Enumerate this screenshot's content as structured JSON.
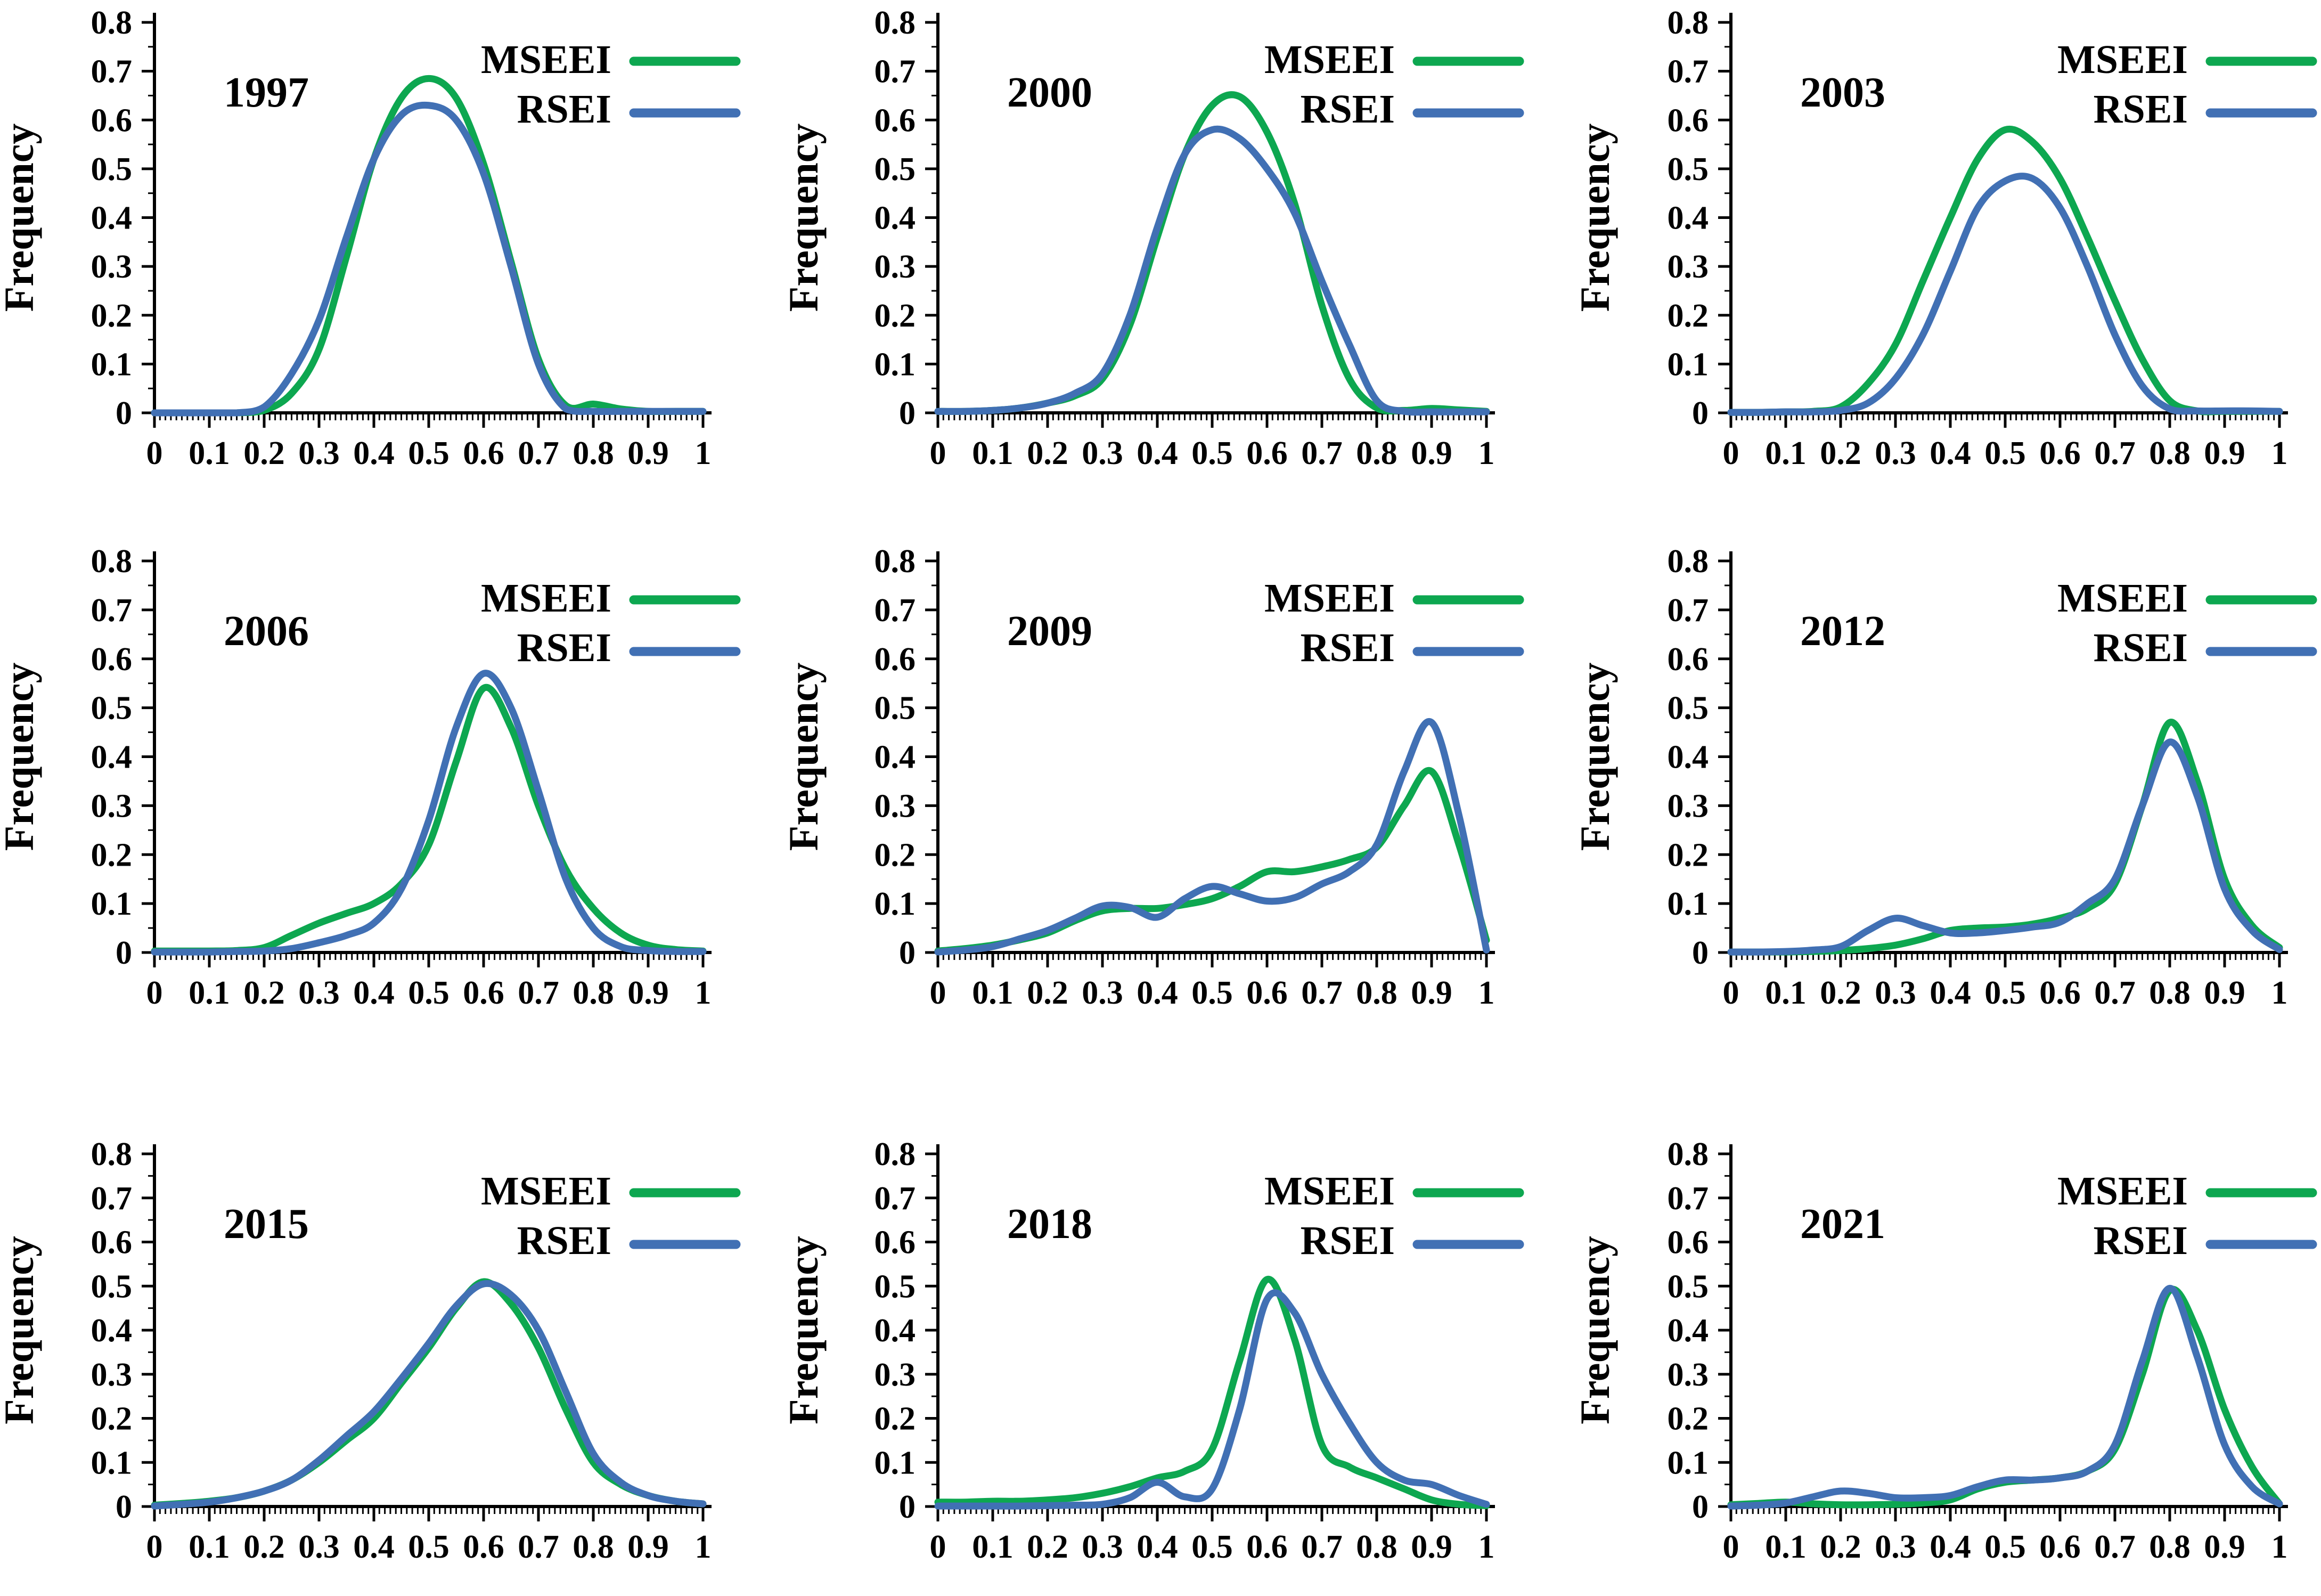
{
  "figure": {
    "ylabel": "Frequency"
  },
  "axes": {
    "xlim": [
      0,
      1
    ],
    "ylim": [
      0,
      0.8
    ],
    "xticks": [
      0,
      0.1,
      0.2,
      0.3,
      0.4,
      0.5,
      0.6,
      0.7,
      0.8,
      0.9,
      1
    ],
    "xticklabels": [
      "0",
      "0.1",
      "0.2",
      "0.3",
      "0.4",
      "0.5",
      "0.6",
      "0.7",
      "0.8",
      "0.9",
      "1"
    ],
    "yticks": [
      0,
      0.1,
      0.2,
      0.3,
      0.4,
      0.5,
      0.6,
      0.7,
      0.8
    ],
    "yticklabels": [
      "0",
      "0.1",
      "0.2",
      "0.3",
      "0.4",
      "0.5",
      "0.6",
      "0.7",
      "0.8"
    ],
    "x_minor_step": 0.01,
    "y_minor_step": 0.05,
    "grid": false,
    "legend_position": "top-right"
  },
  "legend": [
    {
      "label": "MSEEI",
      "color": "#0da750"
    },
    {
      "label": "RSEI",
      "color": "#4170b4"
    }
  ],
  "chart_data": [
    {
      "type": "line",
      "title": "1997",
      "xlabel": "",
      "ylabel": "Frequency",
      "ylim": [
        0,
        0.8
      ],
      "x": [
        0,
        0.05,
        0.1,
        0.15,
        0.2,
        0.25,
        0.3,
        0.35,
        0.4,
        0.45,
        0.5,
        0.55,
        0.6,
        0.65,
        0.7,
        0.75,
        0.8,
        0.85,
        0.9,
        0.95,
        1
      ],
      "series": [
        {
          "name": "MSEEI",
          "values": [
            0,
            0,
            0,
            0,
            0.005,
            0.04,
            0.13,
            0.32,
            0.52,
            0.645,
            0.685,
            0.645,
            0.51,
            0.31,
            0.11,
            0.015,
            0.018,
            0.008,
            0.003,
            0.003,
            0.003
          ]
        },
        {
          "name": "RSEI",
          "values": [
            0,
            0,
            0,
            0,
            0.012,
            0.08,
            0.19,
            0.36,
            0.52,
            0.61,
            0.63,
            0.6,
            0.49,
            0.3,
            0.1,
            0.008,
            0.003,
            0.003,
            0.003,
            0.003,
            0.003
          ]
        }
      ]
    },
    {
      "type": "line",
      "title": "2000",
      "xlabel": "",
      "ylabel": "Frequency",
      "ylim": [
        0,
        0.8
      ],
      "x": [
        0,
        0.05,
        0.1,
        0.15,
        0.2,
        0.25,
        0.3,
        0.35,
        0.4,
        0.45,
        0.5,
        0.55,
        0.6,
        0.65,
        0.7,
        0.75,
        0.8,
        0.85,
        0.9,
        0.95,
        1
      ],
      "series": [
        {
          "name": "MSEEI",
          "values": [
            0.003,
            0.003,
            0.005,
            0.01,
            0.02,
            0.035,
            0.07,
            0.18,
            0.36,
            0.53,
            0.63,
            0.648,
            0.575,
            0.43,
            0.22,
            0.07,
            0.01,
            0.005,
            0.009,
            0.006,
            0.003
          ]
        },
        {
          "name": "RSEI",
          "values": [
            0.003,
            0.003,
            0.005,
            0.01,
            0.02,
            0.04,
            0.08,
            0.2,
            0.38,
            0.53,
            0.58,
            0.562,
            0.5,
            0.41,
            0.27,
            0.14,
            0.025,
            0.003,
            0.002,
            0.002,
            0.002
          ]
        }
      ]
    },
    {
      "type": "line",
      "title": "2003",
      "xlabel": "",
      "ylabel": "Frequency",
      "ylim": [
        0,
        0.8
      ],
      "x": [
        0,
        0.05,
        0.1,
        0.15,
        0.2,
        0.25,
        0.3,
        0.35,
        0.4,
        0.45,
        0.5,
        0.55,
        0.6,
        0.65,
        0.7,
        0.75,
        0.8,
        0.85,
        0.9,
        0.95,
        1
      ],
      "series": [
        {
          "name": "MSEEI",
          "values": [
            0.001,
            0.001,
            0.002,
            0.003,
            0.012,
            0.06,
            0.14,
            0.27,
            0.4,
            0.52,
            0.58,
            0.555,
            0.48,
            0.36,
            0.23,
            0.11,
            0.025,
            0.004,
            0.003,
            0.003,
            0.003
          ]
        },
        {
          "name": "RSEI",
          "values": [
            0.001,
            0.001,
            0.002,
            0.002,
            0.005,
            0.02,
            0.07,
            0.16,
            0.29,
            0.42,
            0.475,
            0.48,
            0.42,
            0.3,
            0.16,
            0.055,
            0.008,
            0.004,
            0.004,
            0.004,
            0.003
          ]
        }
      ]
    },
    {
      "type": "line",
      "title": "2006",
      "xlabel": "",
      "ylabel": "Frequency",
      "ylim": [
        0,
        0.8
      ],
      "x": [
        0,
        0.05,
        0.1,
        0.15,
        0.2,
        0.25,
        0.3,
        0.35,
        0.4,
        0.45,
        0.5,
        0.55,
        0.6,
        0.65,
        0.7,
        0.75,
        0.8,
        0.85,
        0.9,
        0.95,
        1
      ],
      "series": [
        {
          "name": "MSEEI",
          "values": [
            0.003,
            0.003,
            0.003,
            0.004,
            0.01,
            0.035,
            0.06,
            0.08,
            0.1,
            0.14,
            0.22,
            0.39,
            0.54,
            0.46,
            0.3,
            0.17,
            0.09,
            0.04,
            0.015,
            0.006,
            0.003
          ]
        },
        {
          "name": "RSEI",
          "values": [
            0.001,
            0.001,
            0.001,
            0.002,
            0.003,
            0.008,
            0.02,
            0.035,
            0.06,
            0.13,
            0.27,
            0.46,
            0.57,
            0.5,
            0.33,
            0.15,
            0.05,
            0.012,
            0.004,
            0.002,
            0.002
          ]
        }
      ]
    },
    {
      "type": "line",
      "title": "2009",
      "xlabel": "",
      "ylabel": "Frequency",
      "ylim": [
        0,
        0.8
      ],
      "x": [
        0,
        0.05,
        0.1,
        0.15,
        0.2,
        0.25,
        0.3,
        0.35,
        0.4,
        0.45,
        0.5,
        0.55,
        0.6,
        0.65,
        0.7,
        0.75,
        0.8,
        0.85,
        0.9,
        0.95,
        1
      ],
      "series": [
        {
          "name": "MSEEI",
          "values": [
            0.003,
            0.008,
            0.015,
            0.026,
            0.04,
            0.065,
            0.085,
            0.09,
            0.09,
            0.098,
            0.11,
            0.135,
            0.165,
            0.165,
            0.175,
            0.19,
            0.215,
            0.3,
            0.37,
            0.22,
            0.025
          ]
        },
        {
          "name": "RSEI",
          "values": [
            0.001,
            0.005,
            0.012,
            0.028,
            0.045,
            0.07,
            0.095,
            0.092,
            0.072,
            0.11,
            0.135,
            0.12,
            0.105,
            0.112,
            0.14,
            0.165,
            0.22,
            0.37,
            0.47,
            0.28,
            0.005
          ]
        }
      ]
    },
    {
      "type": "line",
      "title": "2012",
      "xlabel": "",
      "ylabel": "Frequency",
      "ylim": [
        0,
        0.8
      ],
      "x": [
        0,
        0.05,
        0.1,
        0.15,
        0.2,
        0.25,
        0.3,
        0.35,
        0.4,
        0.45,
        0.5,
        0.55,
        0.6,
        0.65,
        0.7,
        0.75,
        0.8,
        0.85,
        0.9,
        0.95,
        1
      ],
      "series": [
        {
          "name": "MSEEI",
          "values": [
            0.001,
            0.001,
            0.001,
            0.002,
            0.004,
            0.008,
            0.015,
            0.028,
            0.045,
            0.05,
            0.052,
            0.058,
            0.07,
            0.09,
            0.14,
            0.3,
            0.47,
            0.35,
            0.15,
            0.055,
            0.01
          ]
        },
        {
          "name": "RSEI",
          "values": [
            0.001,
            0.001,
            0.002,
            0.005,
            0.012,
            0.045,
            0.07,
            0.055,
            0.04,
            0.04,
            0.045,
            0.052,
            0.062,
            0.1,
            0.15,
            0.3,
            0.43,
            0.32,
            0.13,
            0.045,
            0.006
          ]
        }
      ]
    },
    {
      "type": "line",
      "title": "2015",
      "xlabel": "",
      "ylabel": "Frequency",
      "ylim": [
        0,
        0.8
      ],
      "x": [
        0,
        0.05,
        0.1,
        0.15,
        0.2,
        0.25,
        0.3,
        0.35,
        0.4,
        0.45,
        0.5,
        0.55,
        0.6,
        0.65,
        0.7,
        0.75,
        0.8,
        0.85,
        0.9,
        0.95,
        1
      ],
      "series": [
        {
          "name": "MSEEI",
          "values": [
            0.003,
            0.007,
            0.012,
            0.02,
            0.035,
            0.06,
            0.1,
            0.15,
            0.2,
            0.28,
            0.36,
            0.45,
            0.51,
            0.46,
            0.36,
            0.22,
            0.1,
            0.05,
            0.025,
            0.012,
            0.006
          ]
        },
        {
          "name": "RSEI",
          "values": [
            0.001,
            0.005,
            0.01,
            0.02,
            0.035,
            0.06,
            0.105,
            0.16,
            0.215,
            0.29,
            0.37,
            0.455,
            0.505,
            0.48,
            0.4,
            0.26,
            0.12,
            0.055,
            0.025,
            0.012,
            0.006
          ]
        }
      ]
    },
    {
      "type": "line",
      "title": "2018",
      "xlabel": "",
      "ylabel": "Frequency",
      "ylim": [
        0,
        0.8
      ],
      "x": [
        0,
        0.05,
        0.1,
        0.15,
        0.2,
        0.25,
        0.3,
        0.35,
        0.4,
        0.45,
        0.5,
        0.55,
        0.6,
        0.65,
        0.7,
        0.75,
        0.8,
        0.85,
        0.9,
        0.95,
        1
      ],
      "series": [
        {
          "name": "MSEEI",
          "values": [
            0.01,
            0.01,
            0.012,
            0.012,
            0.015,
            0.02,
            0.03,
            0.045,
            0.065,
            0.08,
            0.13,
            0.33,
            0.515,
            0.38,
            0.14,
            0.09,
            0.065,
            0.04,
            0.015,
            0.005,
            0.002
          ]
        },
        {
          "name": "RSEI",
          "values": [
            0.001,
            0.001,
            0.001,
            0.001,
            0.002,
            0.003,
            0.005,
            0.02,
            0.055,
            0.022,
            0.04,
            0.22,
            0.47,
            0.44,
            0.3,
            0.19,
            0.1,
            0.06,
            0.05,
            0.025,
            0.005
          ]
        }
      ]
    },
    {
      "type": "line",
      "title": "2021",
      "xlabel": "",
      "ylabel": "Frequency",
      "ylim": [
        0,
        0.8
      ],
      "x": [
        0,
        0.05,
        0.1,
        0.15,
        0.2,
        0.25,
        0.3,
        0.35,
        0.4,
        0.45,
        0.5,
        0.55,
        0.6,
        0.65,
        0.7,
        0.75,
        0.8,
        0.85,
        0.9,
        0.95,
        1
      ],
      "series": [
        {
          "name": "MSEEI",
          "values": [
            0.004,
            0.007,
            0.01,
            0.006,
            0.004,
            0.004,
            0.005,
            0.008,
            0.015,
            0.04,
            0.055,
            0.06,
            0.065,
            0.08,
            0.13,
            0.3,
            0.49,
            0.4,
            0.22,
            0.09,
            0.006
          ]
        },
        {
          "name": "RSEI",
          "values": [
            0.001,
            0.003,
            0.008,
            0.022,
            0.035,
            0.03,
            0.02,
            0.02,
            0.025,
            0.045,
            0.06,
            0.06,
            0.065,
            0.08,
            0.14,
            0.33,
            0.495,
            0.34,
            0.14,
            0.045,
            0.006
          ]
        }
      ]
    }
  ]
}
